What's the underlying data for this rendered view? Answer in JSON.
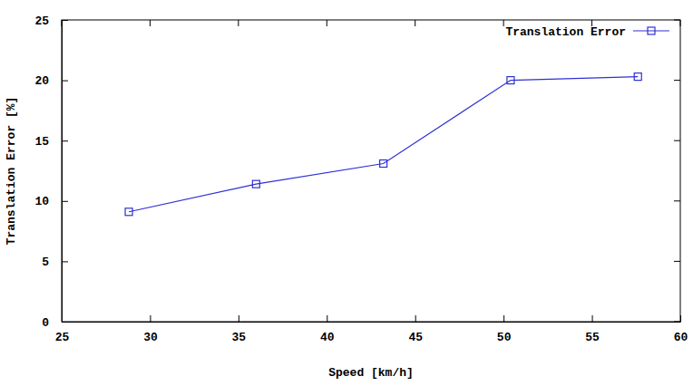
{
  "chart_data": {
    "type": "line",
    "x_label": "Speed [km/h]",
    "y_label": "Translation Error [%]",
    "x": [
      28.8,
      36,
      43.2,
      50.4,
      57.6
    ],
    "series": [
      {
        "name": "Translation Error",
        "color": "#2f2fd6",
        "marker": "square",
        "line_style": "solid",
        "values": [
          9.1,
          11.4,
          13.1,
          20.0,
          20.3
        ]
      }
    ],
    "xlim": [
      25,
      60
    ],
    "xticks": [
      25,
      30,
      35,
      40,
      45,
      50,
      55,
      60
    ],
    "ylim": [
      0,
      25
    ],
    "yticks": [
      0,
      5,
      10,
      15,
      20,
      25
    ],
    "grid": false,
    "legend": "top-right"
  }
}
